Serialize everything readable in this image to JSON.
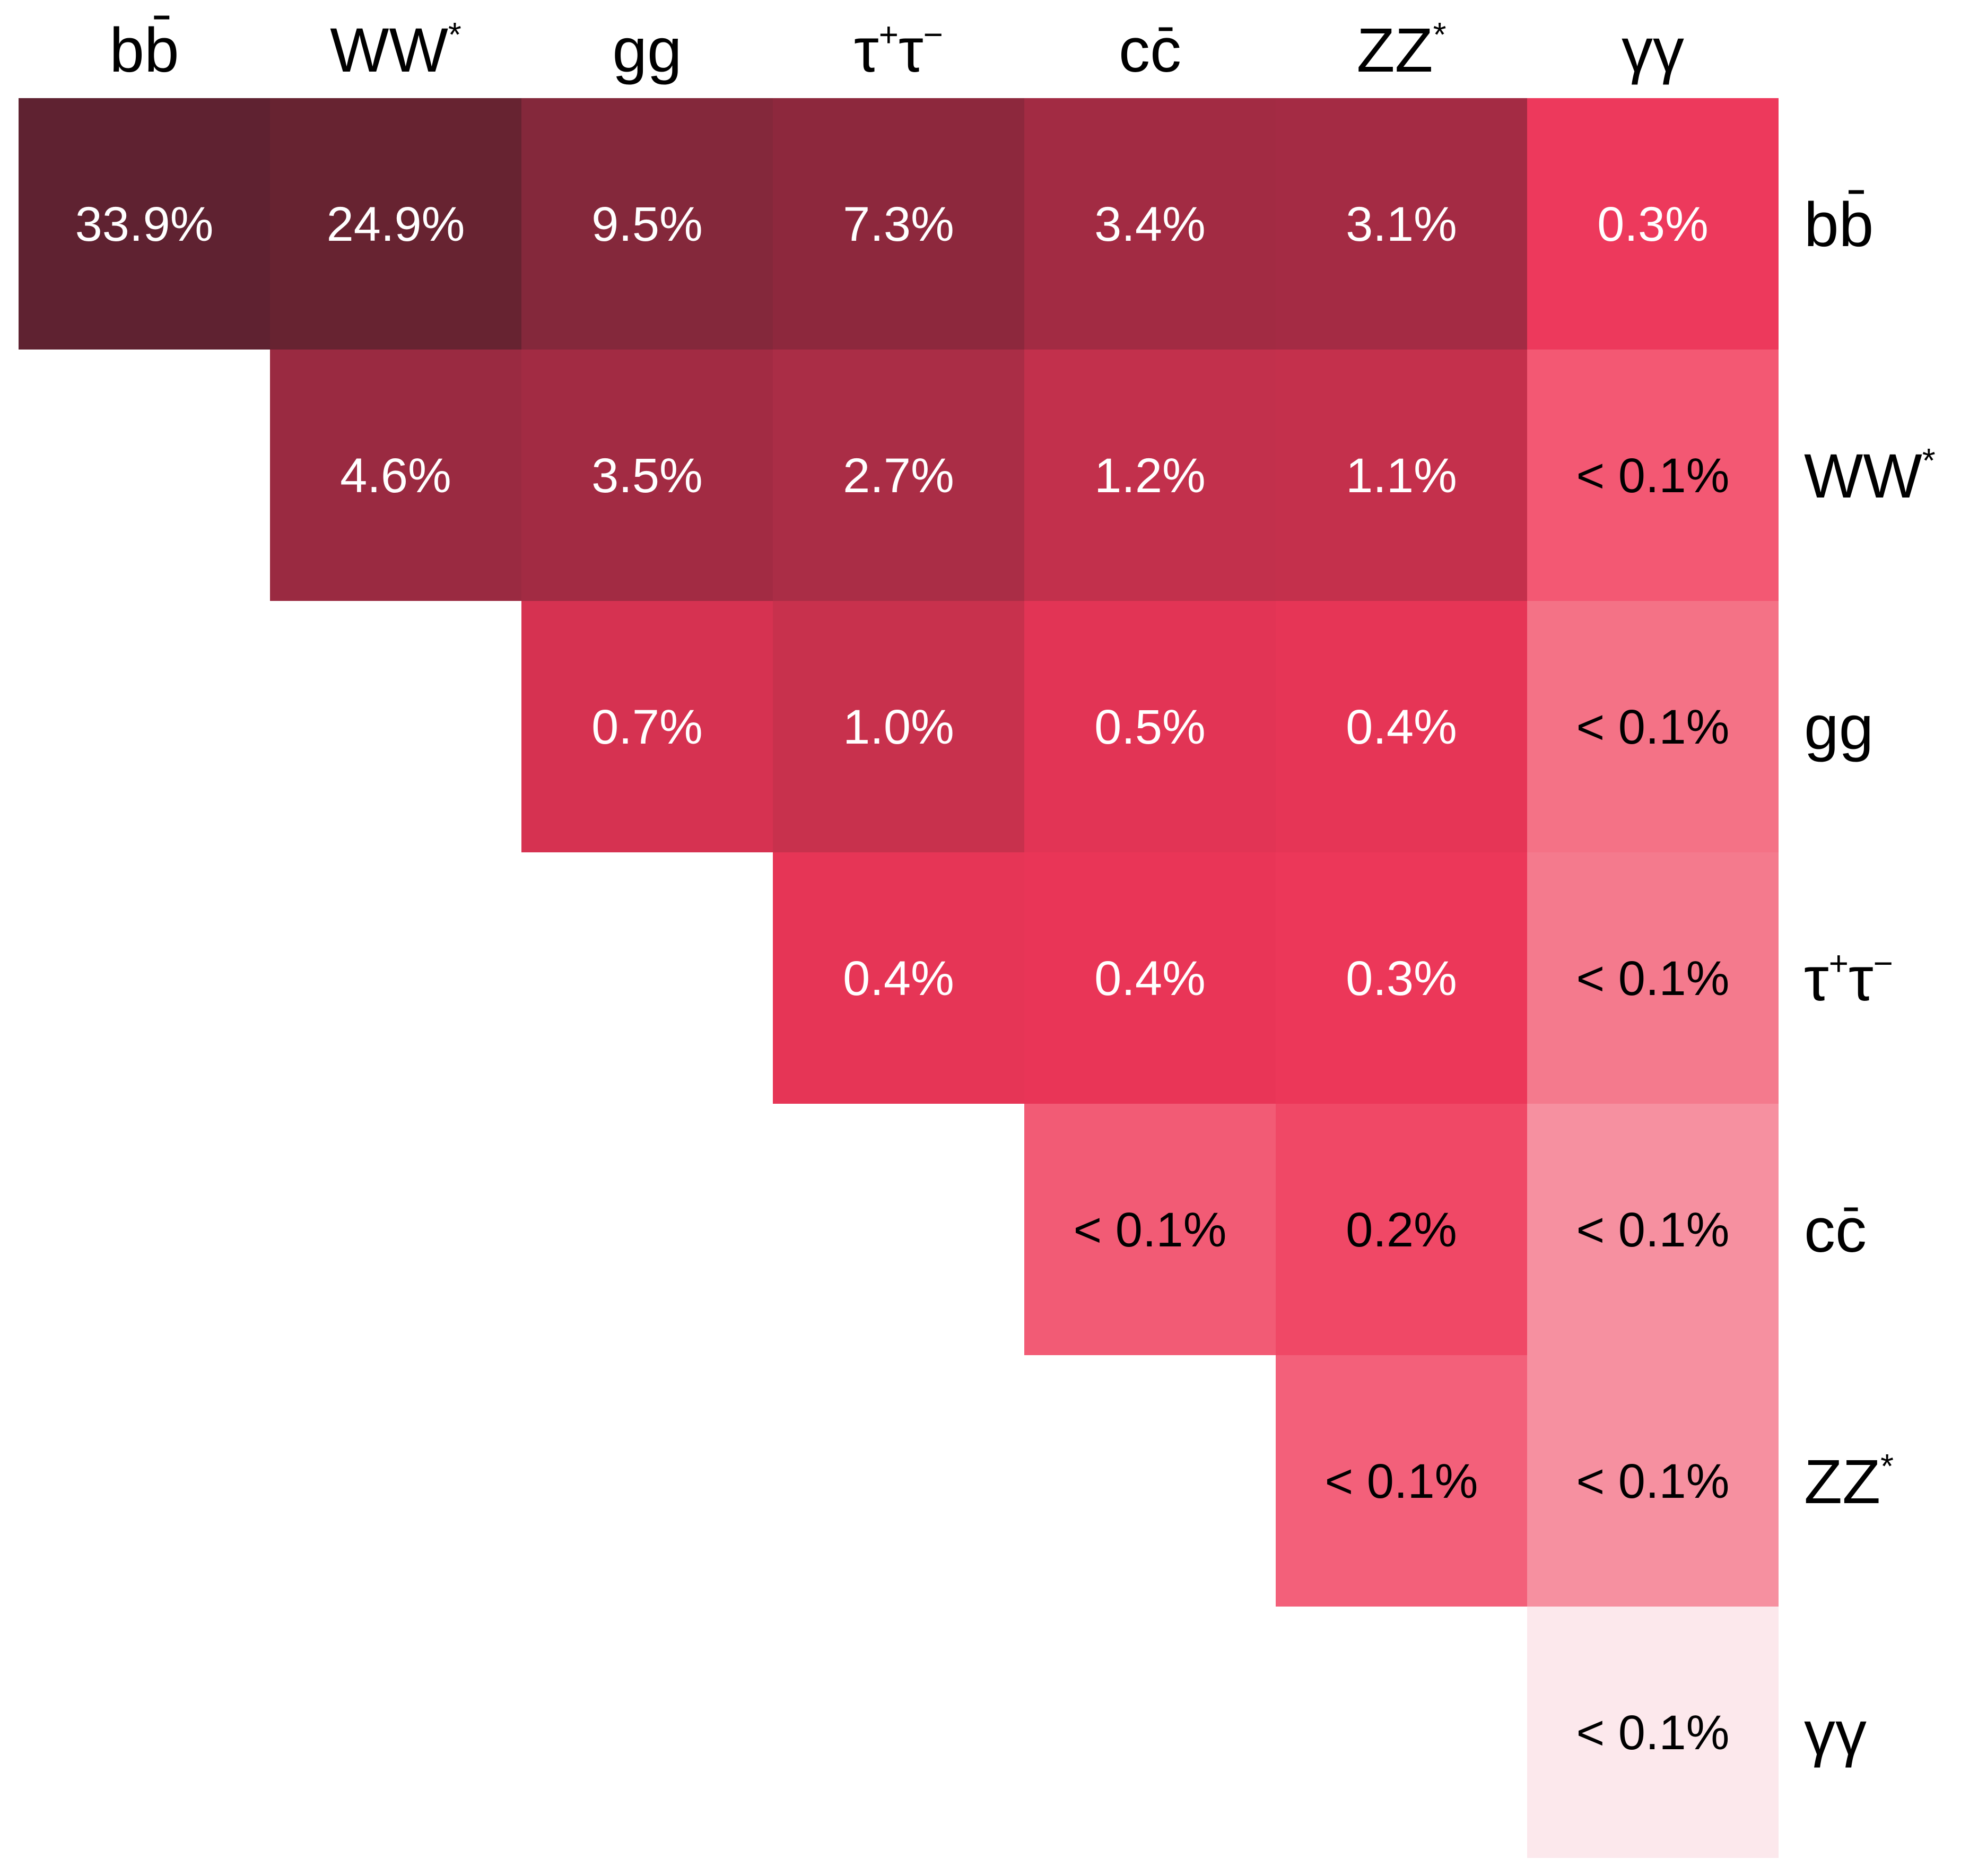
{
  "chart_data": {
    "type": "heatmap",
    "title": "",
    "categories": [
      {
        "base": "b",
        "overline": "b",
        "sup": ""
      },
      {
        "base": "WW",
        "overline": "",
        "sup": "*"
      },
      {
        "base": "gg",
        "overline": "",
        "sup": ""
      },
      {
        "base": "τ",
        "overline": "",
        "sup": "+",
        "base2": "τ",
        "sup2": "−"
      },
      {
        "base": "c",
        "overline": "c",
        "sup": ""
      },
      {
        "base": "ZZ",
        "overline": "",
        "sup": "*"
      },
      {
        "base": "γγ",
        "overline": "",
        "sup": ""
      }
    ],
    "cells": [
      {
        "row": 0,
        "col": 0,
        "value": 33.9,
        "label": "33.9%",
        "color": "#5f2231",
        "text_color": "#ffffff"
      },
      {
        "row": 0,
        "col": 1,
        "value": 24.9,
        "label": "24.9%",
        "color": "#672331",
        "text_color": "#ffffff"
      },
      {
        "row": 0,
        "col": 2,
        "value": 9.5,
        "label": "9.5%",
        "color": "#84283b",
        "text_color": "#ffffff"
      },
      {
        "row": 0,
        "col": 3,
        "value": 7.3,
        "label": "7.3%",
        "color": "#8d283d",
        "text_color": "#ffffff"
      },
      {
        "row": 0,
        "col": 4,
        "value": 3.4,
        "label": "3.4%",
        "color": "#a22b43",
        "text_color": "#ffffff"
      },
      {
        "row": 0,
        "col": 5,
        "value": 3.1,
        "label": "3.1%",
        "color": "#a42b44",
        "text_color": "#ffffff"
      },
      {
        "row": 0,
        "col": 6,
        "value": 0.3,
        "label": "0.3%",
        "color": "#ed395c",
        "text_color": "#ffffff"
      },
      {
        "row": 1,
        "col": 1,
        "value": 4.6,
        "label": "4.6%",
        "color": "#9a2a41",
        "text_color": "#ffffff"
      },
      {
        "row": 1,
        "col": 2,
        "value": 3.5,
        "label": "3.5%",
        "color": "#a22b43",
        "text_color": "#ffffff"
      },
      {
        "row": 1,
        "col": 3,
        "value": 2.7,
        "label": "2.7%",
        "color": "#aa2d46",
        "text_color": "#ffffff"
      },
      {
        "row": 1,
        "col": 4,
        "value": 1.2,
        "label": "1.2%",
        "color": "#c2304c",
        "text_color": "#ffffff"
      },
      {
        "row": 1,
        "col": 5,
        "value": 1.1,
        "label": "1.1%",
        "color": "#c4304c",
        "text_color": "#ffffff"
      },
      {
        "row": 1,
        "col": 6,
        "value": 0.09,
        "label": "< 0.1%",
        "color": "#f35873",
        "text_color": "#000000"
      },
      {
        "row": 2,
        "col": 2,
        "value": 0.7,
        "label": "0.7%",
        "color": "#d63251",
        "text_color": "#ffffff"
      },
      {
        "row": 2,
        "col": 3,
        "value": 1.0,
        "label": "1.0%",
        "color": "#c8314d",
        "text_color": "#ffffff"
      },
      {
        "row": 2,
        "col": 4,
        "value": 0.5,
        "label": "0.5%",
        "color": "#e23455",
        "text_color": "#ffffff"
      },
      {
        "row": 2,
        "col": 5,
        "value": 0.4,
        "label": "0.4%",
        "color": "#e63556",
        "text_color": "#ffffff"
      },
      {
        "row": 2,
        "col": 6,
        "value": 0.06,
        "label": "< 0.1%",
        "color": "#f47286",
        "text_color": "#000000"
      },
      {
        "row": 3,
        "col": 3,
        "value": 0.4,
        "label": "0.4%",
        "color": "#e63556",
        "text_color": "#ffffff"
      },
      {
        "row": 3,
        "col": 4,
        "value": 0.4,
        "label": "0.4%",
        "color": "#e93557",
        "text_color": "#ffffff"
      },
      {
        "row": 3,
        "col": 5,
        "value": 0.3,
        "label": "0.3%",
        "color": "#ec3759",
        "text_color": "#ffffff"
      },
      {
        "row": 3,
        "col": 6,
        "value": 0.05,
        "label": "< 0.1%",
        "color": "#f47a8d",
        "text_color": "#000000"
      },
      {
        "row": 4,
        "col": 4,
        "value": 0.09,
        "label": "< 0.1%",
        "color": "#f25b75",
        "text_color": "#000000"
      },
      {
        "row": 4,
        "col": 5,
        "value": 0.2,
        "label": "0.2%",
        "color": "#f04866",
        "text_color": "#000000"
      },
      {
        "row": 4,
        "col": 6,
        "value": 0.03,
        "label": "< 0.1%",
        "color": "#f690a0",
        "text_color": "#000000"
      },
      {
        "row": 5,
        "col": 5,
        "value": 0.08,
        "label": "< 0.1%",
        "color": "#f3607a",
        "text_color": "#000000"
      },
      {
        "row": 5,
        "col": 6,
        "value": 0.03,
        "label": "< 0.1%",
        "color": "#f690a0",
        "text_color": "#000000"
      },
      {
        "row": 6,
        "col": 6,
        "value": 0.001,
        "label": "< 0.1%",
        "color": "#fce8ec",
        "text_color": "#000000"
      }
    ]
  }
}
